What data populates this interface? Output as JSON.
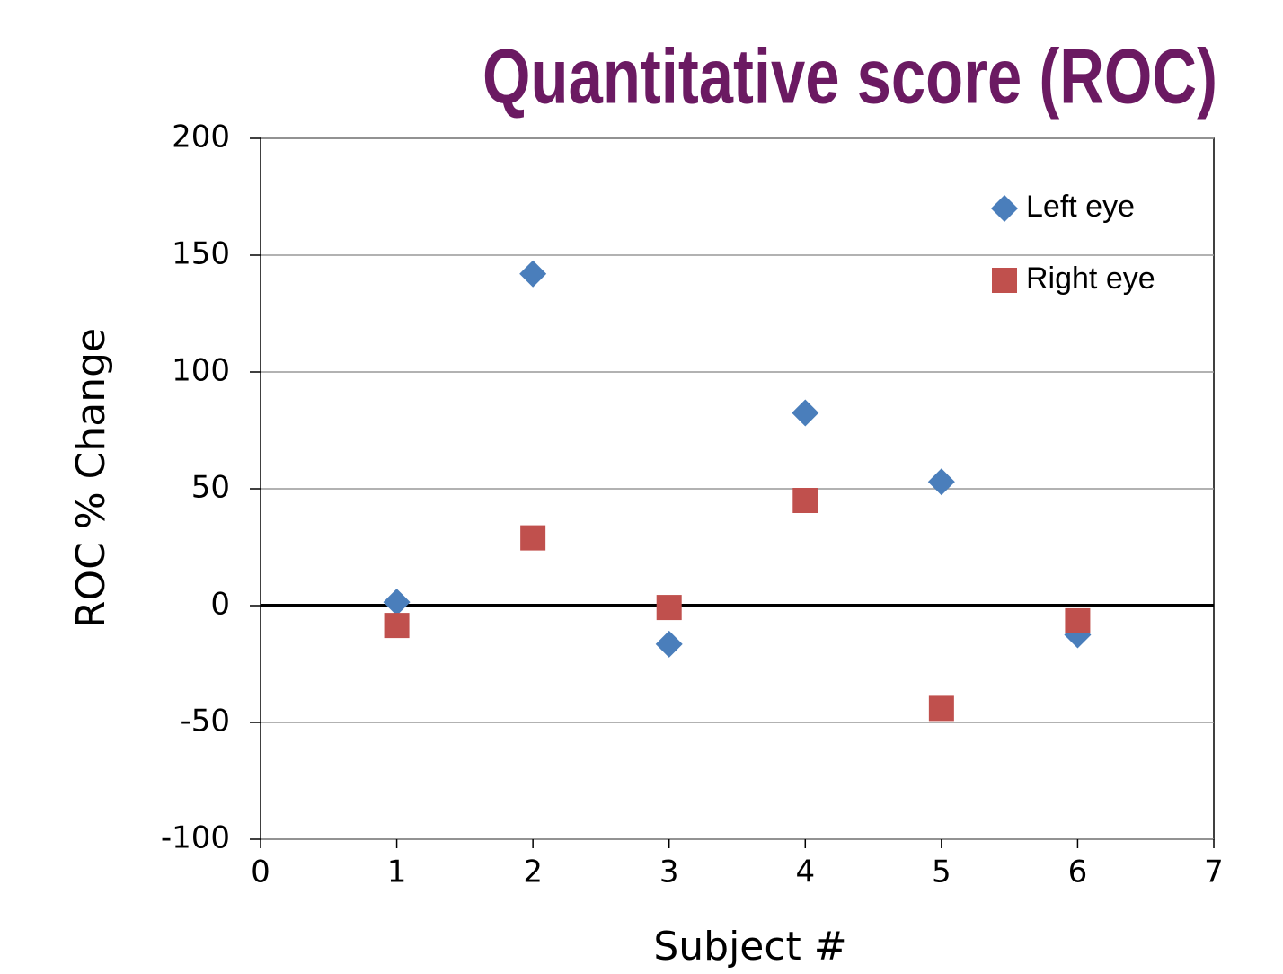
{
  "chart_data": {
    "type": "scatter",
    "title": "Quantitative score (ROC)",
    "x_label": "Subject #",
    "y_label": "ROC % Change",
    "series": [
      {
        "name": "Left eye",
        "color": "#4a7ebb",
        "marker": "diamond",
        "x": [
          1,
          2,
          3,
          4,
          5,
          6
        ],
        "values": [
          1.5,
          142,
          -16.5,
          82.5,
          53,
          -12.5
        ]
      },
      {
        "name": "Right eye",
        "color": "#c0504d",
        "marker": "square",
        "x": [
          1,
          2,
          3,
          4,
          5,
          6
        ],
        "values": [
          -8.5,
          29,
          -0.8,
          45,
          -44,
          -6.5
        ]
      }
    ],
    "xlim": [
      0,
      7
    ],
    "xticks": [
      0,
      1,
      2,
      3,
      4,
      5,
      6,
      7
    ],
    "ylim": [
      -100,
      200
    ],
    "yticks": [
      -100,
      -50,
      0,
      50,
      100,
      150,
      200
    ],
    "grid": true,
    "legend": "upper right"
  }
}
